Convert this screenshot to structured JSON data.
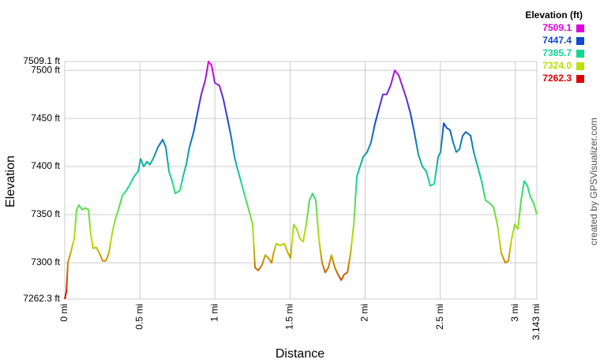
{
  "chart_data": {
    "type": "line",
    "x_label": "Distance",
    "y_label": "Elevation",
    "credit": "created by GPSVisualizer.com",
    "legend": {
      "title": "Elevation (ft)",
      "position": "top-right",
      "items": [
        {
          "value": 7509.1,
          "label": "7509.1",
          "color": "#e000e0"
        },
        {
          "value": 7447.4,
          "label": "7447.4",
          "color": "#1048d0"
        },
        {
          "value": 7385.7,
          "label": "7385.7",
          "color": "#10d890"
        },
        {
          "value": 7324,
          "label": "7324.0",
          "color": "#b8e000"
        },
        {
          "value": 7262.3,
          "label": "7262.3",
          "color": "#e00000"
        }
      ]
    },
    "xlim": [
      0,
      3.143
    ],
    "ylim": [
      7262.3,
      7509.1
    ],
    "xticks": [
      {
        "value": 0,
        "label": "0 mi"
      },
      {
        "value": 0.5,
        "label": "0.5 mi"
      },
      {
        "value": 1,
        "label": "1 mi"
      },
      {
        "value": 1.5,
        "label": "1.5 mi"
      },
      {
        "value": 2,
        "label": "2 mi"
      },
      {
        "value": 2.5,
        "label": "2.5 mi"
      },
      {
        "value": 3,
        "label": "3 mi"
      },
      {
        "value": 3.143,
        "label": "3.143 mi"
      }
    ],
    "yticks": [
      {
        "value": 7262.3,
        "label": "7262.3 ft"
      },
      {
        "value": 7300,
        "label": "7300 ft"
      },
      {
        "value": 7350,
        "label": "7350 ft"
      },
      {
        "value": 7400,
        "label": "7400 ft"
      },
      {
        "value": 7450,
        "label": "7450 ft"
      },
      {
        "value": 7500,
        "label": "7500 ft"
      },
      {
        "value": 7509.1,
        "label": "7509.1 ft"
      }
    ],
    "grid": true,
    "x": [
      0,
      0.011,
      0.021,
      0.042,
      0.063,
      0.079,
      0.095,
      0.116,
      0.137,
      0.158,
      0.173,
      0.189,
      0.21,
      0.231,
      0.252,
      0.273,
      0.294,
      0.315,
      0.336,
      0.357,
      0.384,
      0.41,
      0.436,
      0.463,
      0.489,
      0.505,
      0.526,
      0.547,
      0.568,
      0.594,
      0.62,
      0.652,
      0.673,
      0.694,
      0.715,
      0.736,
      0.767,
      0.788,
      0.809,
      0.83,
      0.857,
      0.883,
      0.909,
      0.936,
      0.957,
      0.978,
      0.999,
      1.03,
      1.056,
      1.083,
      1.109,
      1.13,
      1.146,
      1.172,
      1.198,
      1.225,
      1.251,
      1.267,
      1.288,
      1.314,
      1.335,
      1.356,
      1.377,
      1.393,
      1.409,
      1.435,
      1.461,
      1.487,
      1.503,
      1.524,
      1.545,
      1.566,
      1.587,
      1.608,
      1.629,
      1.65,
      1.671,
      1.692,
      1.713,
      1.734,
      1.755,
      1.776,
      1.798,
      1.819,
      1.84,
      1.861,
      1.882,
      1.903,
      1.924,
      1.945,
      1.966,
      1.987,
      2.013,
      2.039,
      2.066,
      2.092,
      2.118,
      2.144,
      2.171,
      2.197,
      2.223,
      2.249,
      2.276,
      2.302,
      2.328,
      2.355,
      2.381,
      2.407,
      2.433,
      2.46,
      2.486,
      2.502,
      2.523,
      2.544,
      2.565,
      2.586,
      2.607,
      2.628,
      2.649,
      2.67,
      2.702,
      2.723,
      2.749,
      2.775,
      2.801,
      2.828,
      2.854,
      2.88,
      2.906,
      2.933,
      2.954,
      2.975,
      2.996,
      3.017,
      3.038,
      3.059,
      3.08,
      3.101,
      3.122,
      3.143
    ],
    "values": [
      7262.3,
      7270,
      7300,
      7312,
      7325,
      7355,
      7360,
      7355,
      7357,
      7355,
      7330,
      7315,
      7316,
      7310,
      7302,
      7302,
      7310,
      7330,
      7345,
      7355,
      7370,
      7375,
      7382,
      7390,
      7395,
      7408,
      7400,
      7405,
      7402,
      7410,
      7420,
      7428,
      7420,
      7395,
      7385,
      7372,
      7375,
      7390,
      7402,
      7420,
      7435,
      7455,
      7475,
      7490,
      7509.1,
      7505,
      7487,
      7484,
      7470,
      7450,
      7430,
      7410,
      7400,
      7385,
      7370,
      7355,
      7340,
      7295,
      7292,
      7298,
      7308,
      7305,
      7300,
      7312,
      7320,
      7318,
      7320,
      7310,
      7305,
      7340,
      7335,
      7325,
      7322,
      7340,
      7365,
      7372,
      7365,
      7325,
      7300,
      7290,
      7295,
      7308,
      7295,
      7288,
      7282,
      7288,
      7290,
      7310,
      7340,
      7390,
      7400,
      7410,
      7415,
      7425,
      7445,
      7460,
      7475,
      7475,
      7485,
      7500,
      7495,
      7483,
      7470,
      7455,
      7435,
      7412,
      7400,
      7395,
      7380,
      7382,
      7410,
      7415,
      7445,
      7440,
      7438,
      7425,
      7415,
      7418,
      7432,
      7436,
      7432,
      7415,
      7400,
      7385,
      7365,
      7362,
      7358,
      7340,
      7310,
      7300,
      7302,
      7325,
      7340,
      7335,
      7365,
      7385,
      7380,
      7368,
      7362,
      7350
    ]
  }
}
